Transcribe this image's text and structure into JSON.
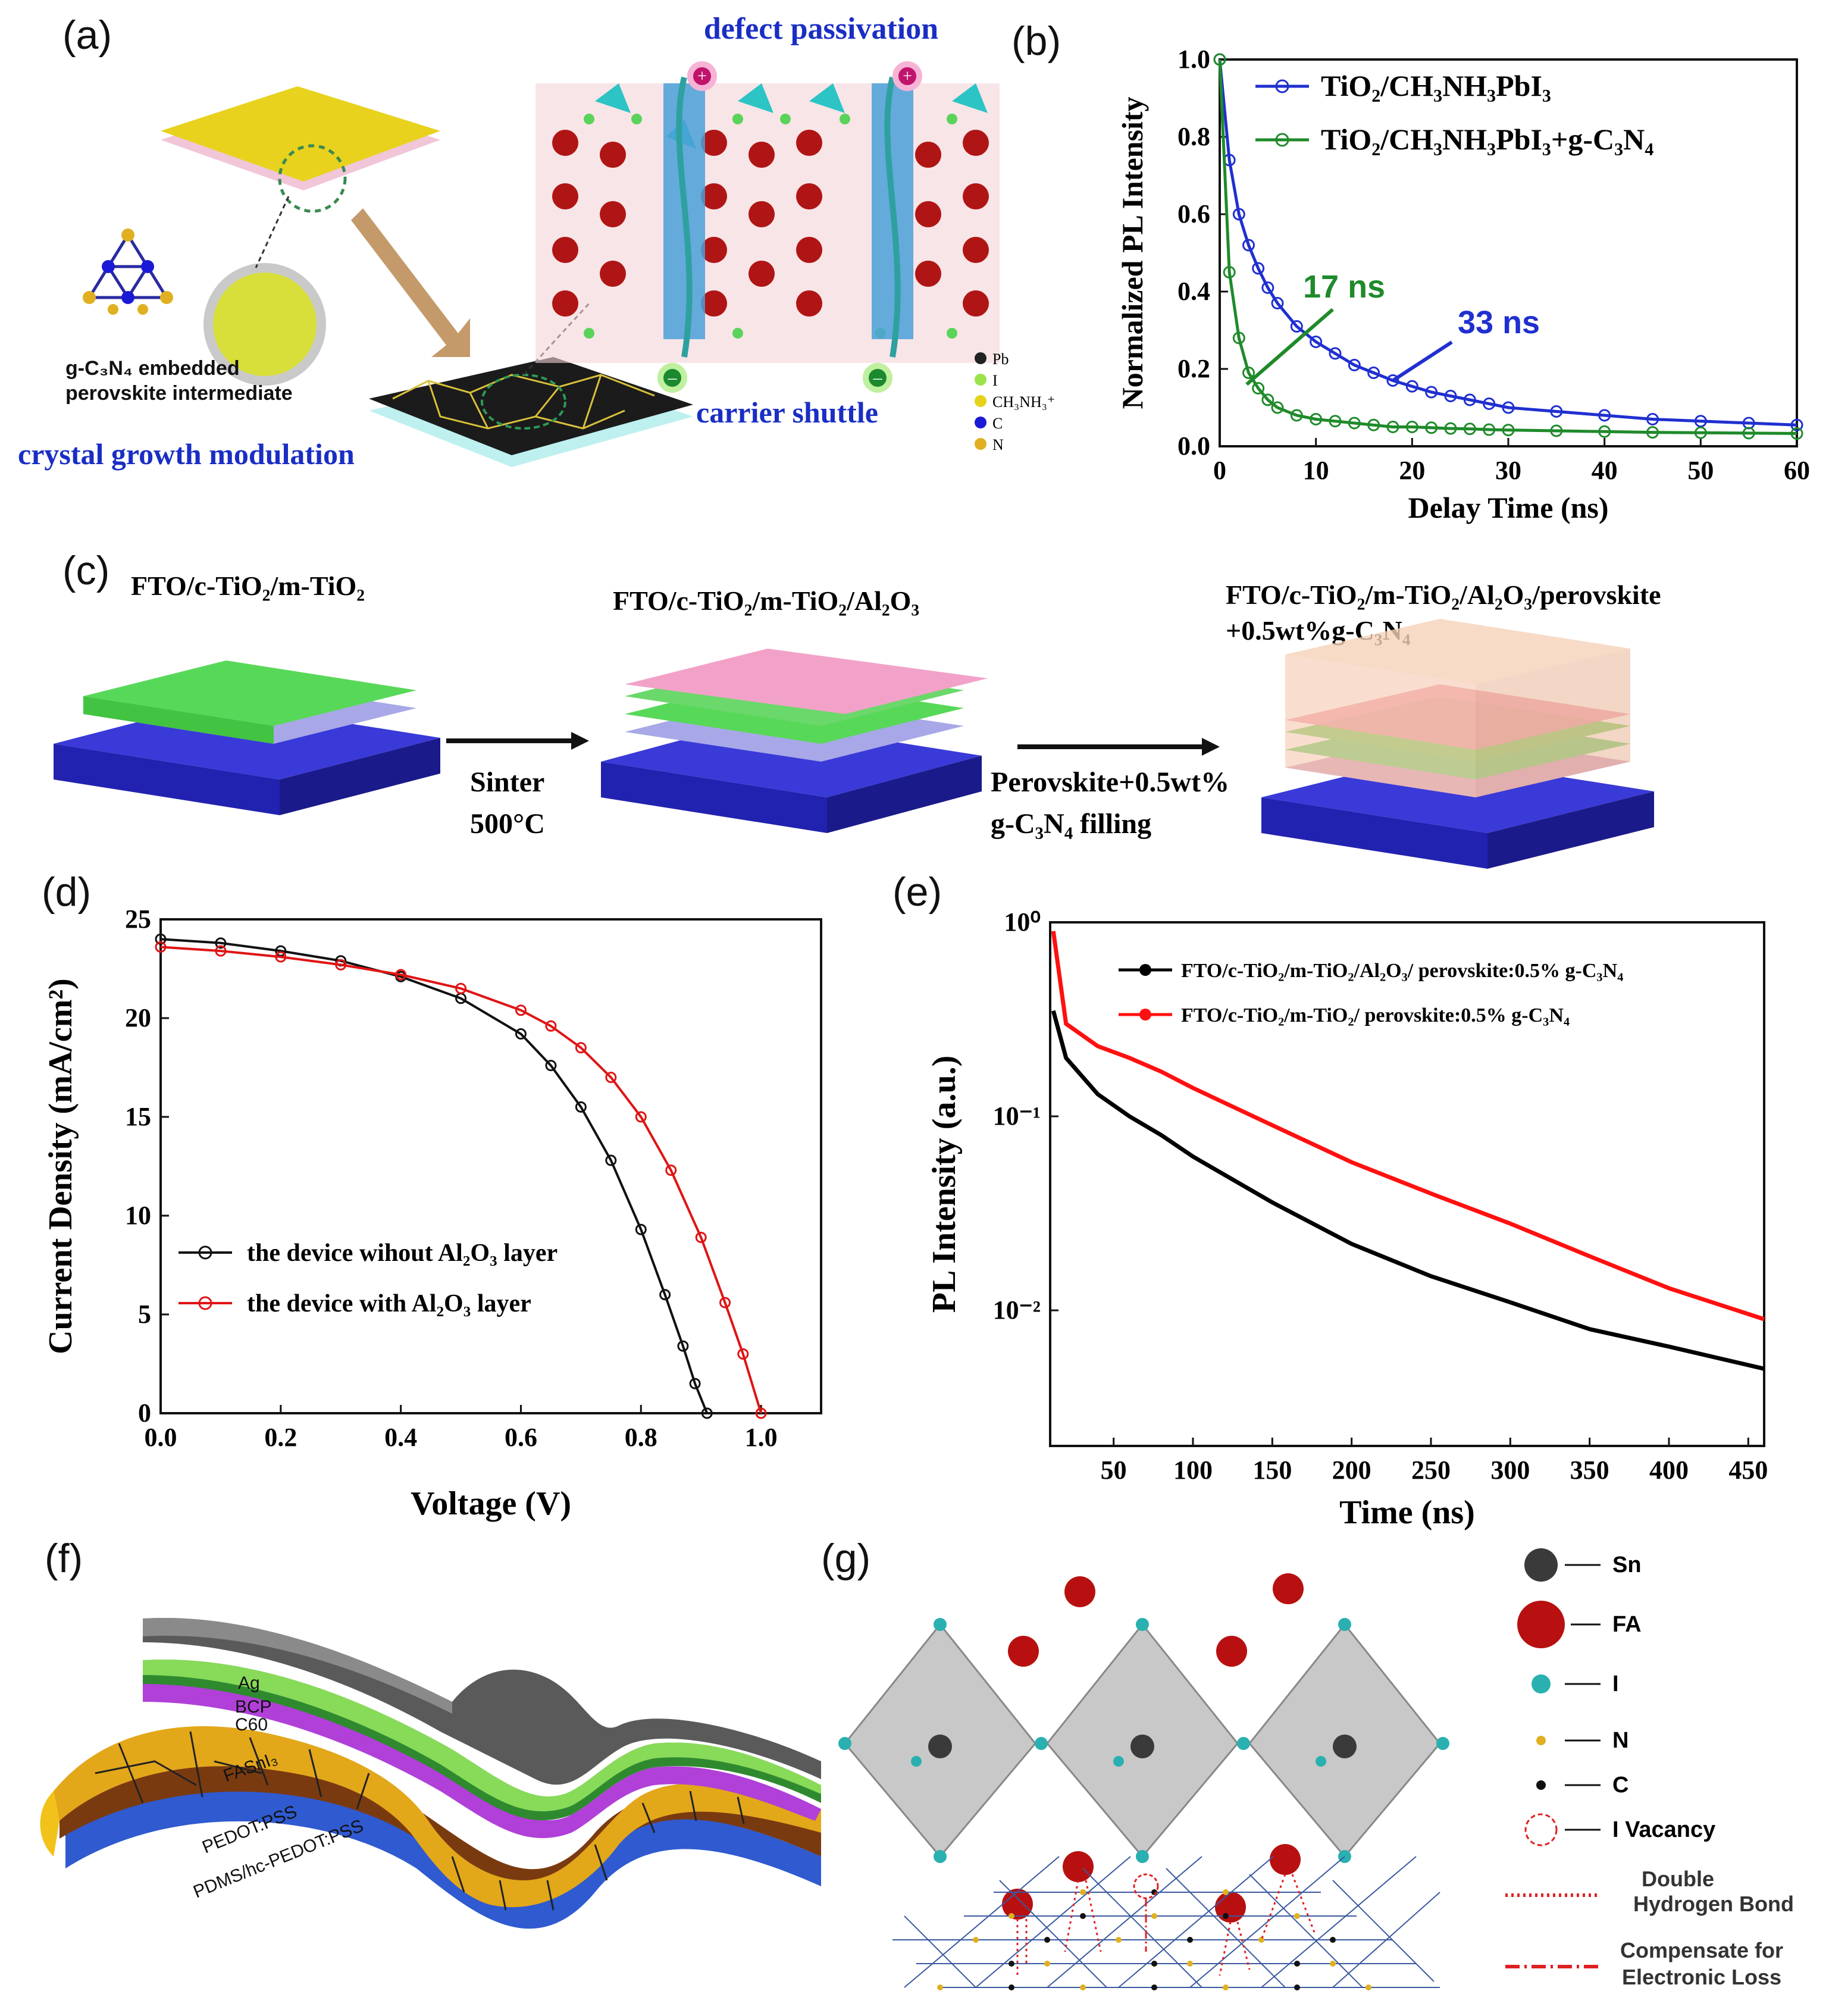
{
  "figure": {
    "panel_labels": {
      "a": "(a)",
      "b": "(b)",
      "c": "(c)",
      "d": "(d)",
      "e": "(e)",
      "f": "(f)",
      "g": "(g)"
    }
  },
  "panel_a": {
    "title_top": "defect passivation",
    "caption_left_1": "g-C₃N₄ embedded",
    "caption_left_2": "perovskite intermediate",
    "caption_bottom_left": "crystal growth modulation",
    "caption_bottom_right": "carrier shuttle",
    "legend": [
      "Pb",
      "I",
      "CH₃NH₃⁺",
      "C",
      "N"
    ],
    "colors": {
      "pb": "#222222",
      "i": "#9be34a",
      "ch3nh3": "#e6d21a",
      "c": "#1a1ad6",
      "n": "#e0b020"
    }
  },
  "panel_b": {
    "ann_fast": "17 ns",
    "ann_slow": "33 ns",
    "chart_data": {
      "type": "line",
      "xlabel": "Delay Time (ns)",
      "ylabel": "Normalized PL Intensity",
      "xlim": [
        0,
        60
      ],
      "ylim": [
        0,
        1.0
      ],
      "xticks": [
        "0",
        "10",
        "20",
        "30",
        "40",
        "50",
        "60"
      ],
      "yticks": [
        "0.0",
        "0.2",
        "0.4",
        "0.6",
        "0.8",
        "1.0"
      ],
      "series": [
        {
          "name": "TiO₂/CH₃NH₃PbI₃",
          "color": "#1f2fd0",
          "x": [
            0,
            1,
            2,
            3,
            4,
            5,
            6,
            8,
            10,
            12,
            14,
            16,
            18,
            20,
            22,
            24,
            26,
            28,
            30,
            35,
            40,
            45,
            50,
            55,
            60
          ],
          "y": [
            1.0,
            0.74,
            0.6,
            0.52,
            0.46,
            0.41,
            0.37,
            0.31,
            0.27,
            0.24,
            0.21,
            0.19,
            0.17,
            0.155,
            0.14,
            0.13,
            0.12,
            0.11,
            0.1,
            0.09,
            0.08,
            0.07,
            0.065,
            0.06,
            0.055
          ]
        },
        {
          "name": "TiO₂/CH₃NH₃PbI₃+g-C₃N₄",
          "color": "#1f8a2a",
          "x": [
            0,
            1,
            2,
            3,
            4,
            5,
            6,
            8,
            10,
            12,
            14,
            16,
            18,
            20,
            22,
            24,
            26,
            28,
            30,
            35,
            40,
            45,
            50,
            55,
            60
          ],
          "y": [
            1.0,
            0.45,
            0.28,
            0.19,
            0.15,
            0.12,
            0.1,
            0.08,
            0.07,
            0.065,
            0.06,
            0.055,
            0.05,
            0.05,
            0.048,
            0.046,
            0.045,
            0.043,
            0.042,
            0.04,
            0.038,
            0.036,
            0.035,
            0.034,
            0.033
          ]
        }
      ]
    }
  },
  "panel_c": {
    "step1": "FTO/c-TiO₂/m-TiO₂",
    "step2": "FTO/c-TiO₂/m-TiO₂/Al₂O₃",
    "step3_line1": "FTO/c-TiO₂/m-TiO₂/Al₂O₃/perovskite",
    "step3_line2": "+0.5wt%g-C₃N₄",
    "arrow1_line1": "Sinter",
    "arrow1_line2": "500°C",
    "arrow2_line1": "Perovskite+0.5wt%",
    "arrow2_line2": "g-C₃N₄ filling"
  },
  "panel_d": {
    "chart_data": {
      "type": "line",
      "xlabel": "Voltage (V)",
      "ylabel": "Current Density (mA/cm²)",
      "xlim": [
        0,
        1.1
      ],
      "ylim": [
        0,
        25
      ],
      "xticks": [
        "0.0",
        "0.2",
        "0.4",
        "0.6",
        "0.8",
        "1.0"
      ],
      "yticks": [
        "0",
        "5",
        "10",
        "15",
        "20",
        "25"
      ],
      "series": [
        {
          "name": "the device wihout Al₂O₃ layer",
          "color": "#111111",
          "x": [
            0,
            0.1,
            0.2,
            0.3,
            0.4,
            0.5,
            0.6,
            0.65,
            0.7,
            0.75,
            0.8,
            0.84,
            0.87,
            0.89,
            0.91
          ],
          "y": [
            24.0,
            23.8,
            23.4,
            22.9,
            22.1,
            21.0,
            19.2,
            17.6,
            15.5,
            12.8,
            9.3,
            6.0,
            3.4,
            1.5,
            0
          ]
        },
        {
          "name": "the device with Al₂O₃ layer",
          "color": "#e01414",
          "x": [
            0,
            0.1,
            0.2,
            0.3,
            0.4,
            0.5,
            0.6,
            0.65,
            0.7,
            0.75,
            0.8,
            0.85,
            0.9,
            0.94,
            0.97,
            1.0
          ],
          "y": [
            23.6,
            23.4,
            23.1,
            22.7,
            22.2,
            21.5,
            20.4,
            19.6,
            18.5,
            17.0,
            15.0,
            12.3,
            8.9,
            5.6,
            3.0,
            0
          ]
        }
      ]
    }
  },
  "panel_e": {
    "chart_data": {
      "type": "line",
      "xlabel": "Time (ns)",
      "ylabel": "PL Intensity (a.u.)",
      "xlim": [
        10,
        460
      ],
      "yscale": "log",
      "ylim": [
        0.002,
        1
      ],
      "xticks": [
        "50",
        "100",
        "150",
        "200",
        "250",
        "300",
        "350",
        "400",
        "450"
      ],
      "yticks": [
        "10⁰",
        "10⁻¹",
        "10⁻²"
      ],
      "series": [
        {
          "name": "FTO/c-TiO₂/m-TiO₂/Al₂O₃/ perovskite:0.5% g-C₃N₄",
          "color": "#000000",
          "x": [
            12,
            20,
            40,
            60,
            80,
            100,
            150,
            200,
            250,
            300,
            350,
            400,
            460
          ],
          "y": [
            0.35,
            0.2,
            0.13,
            0.1,
            0.08,
            0.062,
            0.036,
            0.022,
            0.015,
            0.011,
            0.008,
            0.0065,
            0.005
          ]
        },
        {
          "name": "FTO/c-TiO₂/m-TiO₂/ perovskite:0.5% g-C₃N₄",
          "color": "#ff1010",
          "x": [
            12,
            20,
            40,
            60,
            80,
            100,
            150,
            200,
            250,
            300,
            350,
            400,
            460
          ],
          "y": [
            0.9,
            0.3,
            0.23,
            0.2,
            0.17,
            0.14,
            0.09,
            0.058,
            0.04,
            0.028,
            0.019,
            0.013,
            0.009
          ]
        }
      ]
    }
  },
  "panel_f": {
    "layers": [
      "Ag",
      "BCP",
      "C60",
      "FASnI₃",
      "PEDOT:PSS",
      "PDMS/hc-PEDOT:PSS"
    ]
  },
  "panel_g": {
    "legend": [
      {
        "label": "Sn"
      },
      {
        "label": "FA"
      },
      {
        "label": "I"
      },
      {
        "label": "N"
      },
      {
        "label": "C"
      },
      {
        "label": "I Vacancy"
      }
    ],
    "bond1_line1": "Double",
    "bond1_line2": "Hydrogen Bond",
    "bond2_line1": "Compensate for",
    "bond2_line2": "Electronic Loss"
  }
}
